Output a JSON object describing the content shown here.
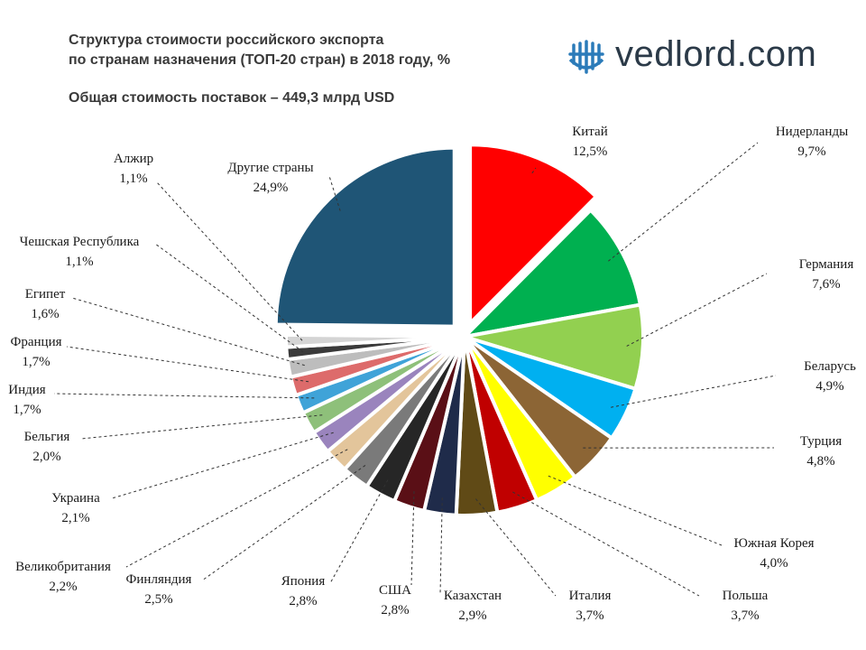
{
  "header": {
    "title_line1": "Структура стоимости российского экспорта",
    "title_line2": "по странам назначения (ТОП-20 стран) в 2018 году, %",
    "subtitle": "Общая стоимость поставок – 449,3 млрд USD"
  },
  "logo": {
    "text": "vedlord.com",
    "icon": "globe-grid-icon",
    "color": "#2b7bb9"
  },
  "chart_data": {
    "type": "pie",
    "title": "Структура стоимости российского экспорта по странам назначения (ТОП-20 стран) в 2018 году, %",
    "start": "12 o'clock, clockwise",
    "exploded": [
      "Китай",
      "Другие страны"
    ],
    "slices": [
      {
        "name": "Китай",
        "value": 12.5,
        "label": "12,5%",
        "color": "#ff0000"
      },
      {
        "name": "Нидерланды",
        "value": 9.7,
        "label": "9,7%",
        "color": "#00b050"
      },
      {
        "name": "Германия",
        "value": 7.6,
        "label": "7,6%",
        "color": "#92d050"
      },
      {
        "name": "Беларусь",
        "value": 4.9,
        "label": "4,9%",
        "color": "#00b0f0"
      },
      {
        "name": "Турция",
        "value": 4.8,
        "label": "4,8%",
        "color": "#8c6535"
      },
      {
        "name": "Южная Корея",
        "value": 4.0,
        "label": "4,0%",
        "color": "#ffff00"
      },
      {
        "name": "Польша",
        "value": 3.7,
        "label": "3,7%",
        "color": "#c00000"
      },
      {
        "name": "Италия",
        "value": 3.7,
        "label": "3,7%",
        "color": "#604a16"
      },
      {
        "name": "Казахстан",
        "value": 2.9,
        "label": "2,9%",
        "color": "#1f2b4a"
      },
      {
        "name": "США",
        "value": 2.8,
        "label": "2,8%",
        "color": "#5a0f16"
      },
      {
        "name": "Япония",
        "value": 2.8,
        "label": "2,8%",
        "color": "#262626"
      },
      {
        "name": "Финляндия",
        "value": 2.5,
        "label": "2,5%",
        "color": "#7a7a7a"
      },
      {
        "name": "Великобритания",
        "value": 2.2,
        "label": "2,2%",
        "color": "#e3c59b"
      },
      {
        "name": "Украина",
        "value": 2.1,
        "label": "2,1%",
        "color": "#9a84bd"
      },
      {
        "name": "Бельгия",
        "value": 2.0,
        "label": "2,0%",
        "color": "#8ec07a"
      },
      {
        "name": "Индия",
        "value": 1.7,
        "label": "1,7%",
        "color": "#3fa3d8"
      },
      {
        "name": "Франция",
        "value": 1.7,
        "label": "1,7%",
        "color": "#dd6b6b"
      },
      {
        "name": "Египет",
        "value": 1.6,
        "label": "1,6%",
        "color": "#bdbdbd"
      },
      {
        "name": "Чешская Республика",
        "value": 1.1,
        "label": "1,1%",
        "color": "#3a3a3a"
      },
      {
        "name": "Алжир",
        "value": 1.1,
        "label": "1,1%",
        "color": "#d4d4d4"
      },
      {
        "name": "Другие страны",
        "value": 24.9,
        "label": "24,9%",
        "color": "#1f5576"
      }
    ]
  }
}
